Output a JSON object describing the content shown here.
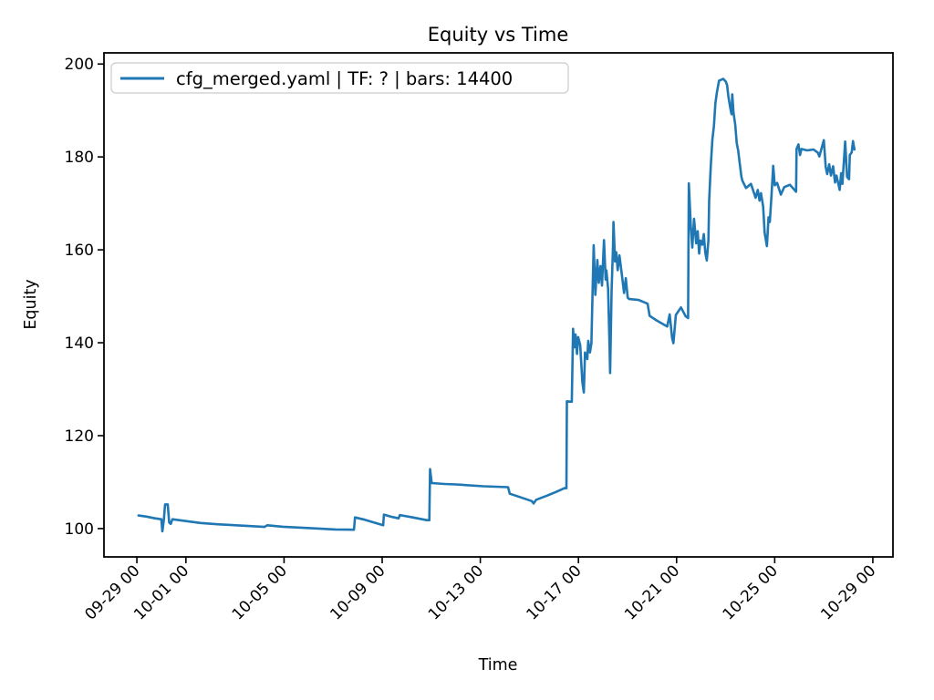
{
  "figure": {
    "title": "Equity vs Time",
    "xlabel": "Time",
    "ylabel": "Equity"
  },
  "legend": {
    "label": "cfg_merged.yaml | TF: ? | bars: 14400"
  },
  "colors": {
    "series": "#1f77b4",
    "spine": "#000000",
    "text": "#000000",
    "legend_border": "#cccccc",
    "background": "#ffffff"
  },
  "chart_data": {
    "type": "line",
    "title": "Equity vs Time",
    "xlabel": "Time",
    "ylabel": "Equity",
    "legend_position": "upper left",
    "grid": false,
    "x_unit": "days since 09-29 00:00",
    "xlim": [
      -1.34,
      30.82
    ],
    "ylim": [
      93.9,
      202.4
    ],
    "x_ticks": [
      {
        "d": 0,
        "label": "09-29 00"
      },
      {
        "d": 2,
        "label": "10-01 00"
      },
      {
        "d": 6,
        "label": "10-05 00"
      },
      {
        "d": 10,
        "label": "10-09 00"
      },
      {
        "d": 14,
        "label": "10-13 00"
      },
      {
        "d": 18,
        "label": "10-17 00"
      },
      {
        "d": 22,
        "label": "10-21 00"
      },
      {
        "d": 26,
        "label": "10-25 00"
      },
      {
        "d": 30,
        "label": "10-29 00"
      }
    ],
    "y_ticks": [
      100,
      120,
      140,
      160,
      180,
      200
    ],
    "series": [
      {
        "name": "cfg_merged.yaml | TF: ? | bars: 14400",
        "color": "#1f77b4",
        "points": [
          [
            0.07,
            102.8
          ],
          [
            0.37,
            102.6
          ],
          [
            0.74,
            102.2
          ],
          [
            1.0,
            102.0
          ],
          [
            1.04,
            99.4
          ],
          [
            1.1,
            101.8
          ],
          [
            1.15,
            105.2
          ],
          [
            1.26,
            105.2
          ],
          [
            1.32,
            101.3
          ],
          [
            1.38,
            101.0
          ],
          [
            1.45,
            102.0
          ],
          [
            1.86,
            101.7
          ],
          [
            2.6,
            101.2
          ],
          [
            3.35,
            100.9
          ],
          [
            4.46,
            100.6
          ],
          [
            5.2,
            100.35
          ],
          [
            5.32,
            100.7
          ],
          [
            5.95,
            100.4
          ],
          [
            7.06,
            100.1
          ],
          [
            8.1,
            99.8
          ],
          [
            8.85,
            99.75
          ],
          [
            8.89,
            102.4
          ],
          [
            9.29,
            101.9
          ],
          [
            10.04,
            100.7
          ],
          [
            10.07,
            103.0
          ],
          [
            10.41,
            102.5
          ],
          [
            10.67,
            102.2
          ],
          [
            10.72,
            102.9
          ],
          [
            11.15,
            102.5
          ],
          [
            11.82,
            101.8
          ],
          [
            11.92,
            101.8
          ],
          [
            11.95,
            112.8
          ],
          [
            12.02,
            109.8
          ],
          [
            12.55,
            109.6
          ],
          [
            13.01,
            109.5
          ],
          [
            14.13,
            109.1
          ],
          [
            15.13,
            108.9
          ],
          [
            15.2,
            107.5
          ],
          [
            15.61,
            106.8
          ],
          [
            16.1,
            105.9
          ],
          [
            16.17,
            105.4
          ],
          [
            16.28,
            106.2
          ],
          [
            16.73,
            107.1
          ],
          [
            17.1,
            107.9
          ],
          [
            17.43,
            108.7
          ],
          [
            17.51,
            108.7
          ],
          [
            17.53,
            127.4
          ],
          [
            17.73,
            127.3
          ],
          [
            17.78,
            143.0
          ],
          [
            17.83,
            139.0
          ],
          [
            17.88,
            141.8
          ],
          [
            17.94,
            137.6
          ],
          [
            17.99,
            141.2
          ],
          [
            18.07,
            139.5
          ],
          [
            18.16,
            131.5
          ],
          [
            18.22,
            129.3
          ],
          [
            18.27,
            137.9
          ],
          [
            18.36,
            136.5
          ],
          [
            18.4,
            140.4
          ],
          [
            18.47,
            137.9
          ],
          [
            18.53,
            139.9
          ],
          [
            18.58,
            152.0
          ],
          [
            18.62,
            161.0
          ],
          [
            18.69,
            150.3
          ],
          [
            18.77,
            157.8
          ],
          [
            18.83,
            152.9
          ],
          [
            18.9,
            156.5
          ],
          [
            18.96,
            152.3
          ],
          [
            19.04,
            162.1
          ],
          [
            19.11,
            153.6
          ],
          [
            19.14,
            155.6
          ],
          [
            19.21,
            151.6
          ],
          [
            19.27,
            139.2
          ],
          [
            19.29,
            133.5
          ],
          [
            19.35,
            151.0
          ],
          [
            19.41,
            160.8
          ],
          [
            19.43,
            166.0
          ],
          [
            19.49,
            157.5
          ],
          [
            19.54,
            159.5
          ],
          [
            19.6,
            155.6
          ],
          [
            19.67,
            158.8
          ],
          [
            19.77,
            154.6
          ],
          [
            19.86,
            150.7
          ],
          [
            19.93,
            153.9
          ],
          [
            20.01,
            149.7
          ],
          [
            20.07,
            149.4
          ],
          [
            20.45,
            149.2
          ],
          [
            20.82,
            148.4
          ],
          [
            20.9,
            145.8
          ],
          [
            21.19,
            144.8
          ],
          [
            21.62,
            143.5
          ],
          [
            21.72,
            146.1
          ],
          [
            21.82,
            141.0
          ],
          [
            21.87,
            139.9
          ],
          [
            21.97,
            146.0
          ],
          [
            22.18,
            147.6
          ],
          [
            22.37,
            145.7
          ],
          [
            22.47,
            145.3
          ],
          [
            22.5,
            174.3
          ],
          [
            22.58,
            165.0
          ],
          [
            22.64,
            160.5
          ],
          [
            22.71,
            166.7
          ],
          [
            22.8,
            161.4
          ],
          [
            22.86,
            164.0
          ],
          [
            22.92,
            159.2
          ],
          [
            22.97,
            162.0
          ],
          [
            23.05,
            161.1
          ],
          [
            23.11,
            163.4
          ],
          [
            23.17,
            159.5
          ],
          [
            23.23,
            157.7
          ],
          [
            23.3,
            162.1
          ],
          [
            23.33,
            170.6
          ],
          [
            23.39,
            177.8
          ],
          [
            23.46,
            183.7
          ],
          [
            23.52,
            186.6
          ],
          [
            23.58,
            191.5
          ],
          [
            23.64,
            193.8
          ],
          [
            23.73,
            196.4
          ],
          [
            23.9,
            196.8
          ],
          [
            24.01,
            196.2
          ],
          [
            24.06,
            195.4
          ],
          [
            24.11,
            193.1
          ],
          [
            24.19,
            190.5
          ],
          [
            24.24,
            189.2
          ],
          [
            24.27,
            193.5
          ],
          [
            24.32,
            189.5
          ],
          [
            24.39,
            186.9
          ],
          [
            24.45,
            183.0
          ],
          [
            24.51,
            181.4
          ],
          [
            24.57,
            178.8
          ],
          [
            24.64,
            175.8
          ],
          [
            24.68,
            174.9
          ],
          [
            24.83,
            173.3
          ],
          [
            25.03,
            174.2
          ],
          [
            25.22,
            171.2
          ],
          [
            25.31,
            172.9
          ],
          [
            25.38,
            170.6
          ],
          [
            25.44,
            172.2
          ],
          [
            25.53,
            169.3
          ],
          [
            25.59,
            163.7
          ],
          [
            25.68,
            160.8
          ],
          [
            25.75,
            167.0
          ],
          [
            25.8,
            166.0
          ],
          [
            25.87,
            171.9
          ],
          [
            25.94,
            178.1
          ],
          [
            26.0,
            173.9
          ],
          [
            26.1,
            174.4
          ],
          [
            26.25,
            171.9
          ],
          [
            26.39,
            173.5
          ],
          [
            26.62,
            174.0
          ],
          [
            26.87,
            172.5
          ],
          [
            26.89,
            181.7
          ],
          [
            26.97,
            182.7
          ],
          [
            27.03,
            180.4
          ],
          [
            27.09,
            181.7
          ],
          [
            27.32,
            181.4
          ],
          [
            27.58,
            181.6
          ],
          [
            27.76,
            180.9
          ],
          [
            27.82,
            180.1
          ],
          [
            28.0,
            183.6
          ],
          [
            28.08,
            177.8
          ],
          [
            28.14,
            176.3
          ],
          [
            28.22,
            178.4
          ],
          [
            28.29,
            176.0
          ],
          [
            28.38,
            178.0
          ],
          [
            28.46,
            174.5
          ],
          [
            28.52,
            176.0
          ],
          [
            28.65,
            172.9
          ],
          [
            28.71,
            176.5
          ],
          [
            28.76,
            174.2
          ],
          [
            28.87,
            183.3
          ],
          [
            28.95,
            175.7
          ],
          [
            29.03,
            175.2
          ],
          [
            29.06,
            180.4
          ],
          [
            29.14,
            181.0
          ],
          [
            29.19,
            183.4
          ],
          [
            29.25,
            181.6
          ]
        ]
      }
    ]
  }
}
